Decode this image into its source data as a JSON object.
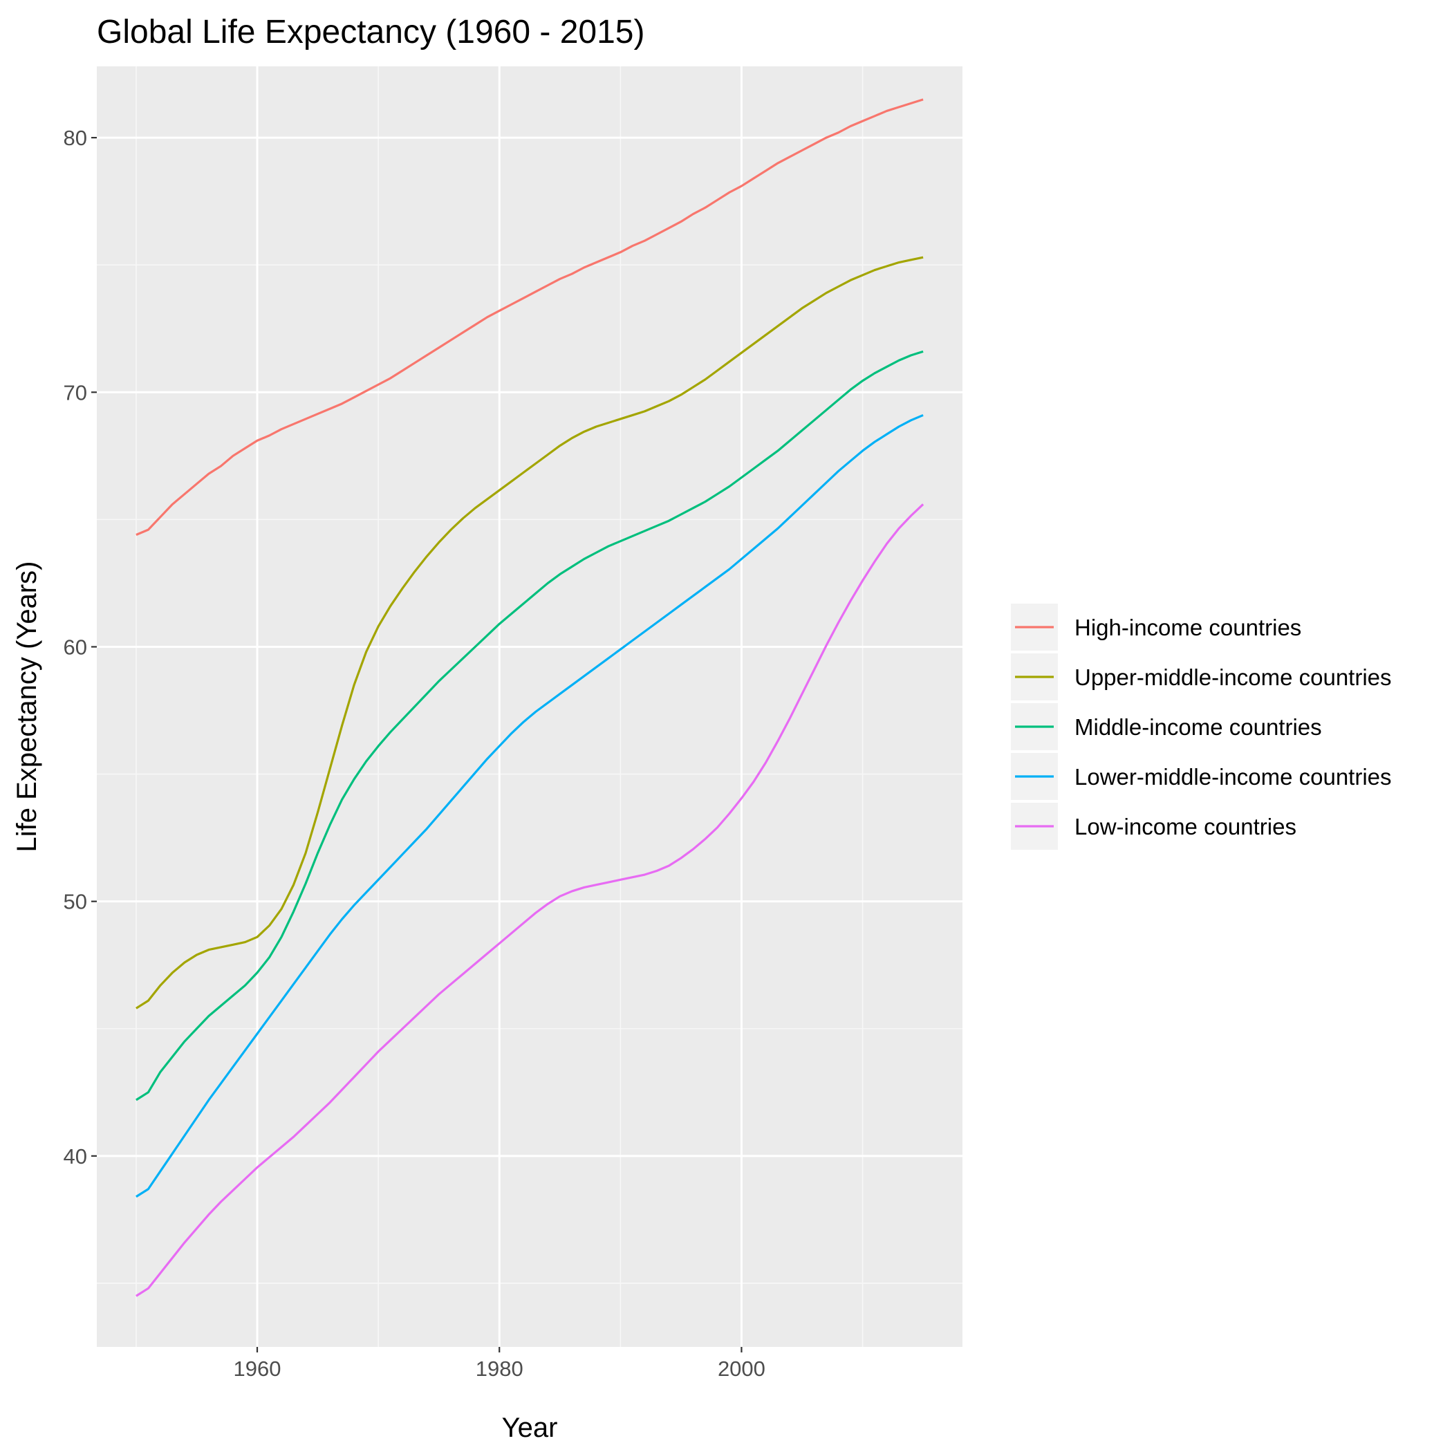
{
  "chart_data": {
    "type": "line",
    "title": "Global Life Expectancy (1960 - 2015)",
    "xlabel": "Year",
    "ylabel": "Life Expectancy (Years)",
    "xlim": [
      1946.75,
      2018.25
    ],
    "ylim": [
      32.5,
      82.8
    ],
    "x_ticks": [
      1960,
      1980,
      2000
    ],
    "x_minor_ticks": [
      1950,
      1970,
      1990,
      2010
    ],
    "y_ticks": [
      40,
      50,
      60,
      70,
      80
    ],
    "y_minor_ticks": [
      35,
      45,
      55,
      65,
      75
    ],
    "grid": true,
    "legend_position": "right",
    "x": [
      1950,
      1951,
      1952,
      1953,
      1954,
      1955,
      1956,
      1957,
      1958,
      1959,
      1960,
      1961,
      1962,
      1963,
      1964,
      1965,
      1966,
      1967,
      1968,
      1969,
      1970,
      1971,
      1972,
      1973,
      1974,
      1975,
      1976,
      1977,
      1978,
      1979,
      1980,
      1981,
      1982,
      1983,
      1984,
      1985,
      1986,
      1987,
      1988,
      1989,
      1990,
      1991,
      1992,
      1993,
      1994,
      1995,
      1996,
      1997,
      1998,
      1999,
      2000,
      2001,
      2002,
      2003,
      2004,
      2005,
      2006,
      2007,
      2008,
      2009,
      2010,
      2011,
      2012,
      2013,
      2014,
      2015
    ],
    "series": [
      {
        "name": "High-income countries",
        "color": "#F8766D",
        "values": [
          64.4,
          64.6,
          65.1,
          65.6,
          66.0,
          66.4,
          66.8,
          67.1,
          67.5,
          67.8,
          68.1,
          68.3,
          68.55,
          68.75,
          68.95,
          69.15,
          69.35,
          69.55,
          69.8,
          70.05,
          70.3,
          70.55,
          70.85,
          71.15,
          71.45,
          71.75,
          72.05,
          72.35,
          72.65,
          72.95,
          73.2,
          73.45,
          73.7,
          73.95,
          74.2,
          74.45,
          74.65,
          74.9,
          75.1,
          75.3,
          75.5,
          75.75,
          75.95,
          76.2,
          76.45,
          76.7,
          77.0,
          77.25,
          77.55,
          77.85,
          78.1,
          78.4,
          78.7,
          79.0,
          79.25,
          79.5,
          79.75,
          80.0,
          80.2,
          80.45,
          80.65,
          80.85,
          81.05,
          81.2,
          81.35,
          81.5
        ]
      },
      {
        "name": "Upper-middle-income countries",
        "color": "#A3A500",
        "values": [
          45.8,
          46.1,
          46.7,
          47.2,
          47.6,
          47.9,
          48.1,
          48.2,
          48.3,
          48.4,
          48.6,
          49.05,
          49.7,
          50.65,
          51.9,
          53.5,
          55.2,
          56.9,
          58.5,
          59.8,
          60.8,
          61.6,
          62.3,
          62.95,
          63.55,
          64.1,
          64.6,
          65.05,
          65.45,
          65.8,
          66.15,
          66.5,
          66.85,
          67.2,
          67.55,
          67.9,
          68.2,
          68.45,
          68.65,
          68.8,
          68.95,
          69.1,
          69.25,
          69.45,
          69.65,
          69.9,
          70.2,
          70.5,
          70.85,
          71.2,
          71.55,
          71.9,
          72.25,
          72.6,
          72.95,
          73.3,
          73.6,
          73.9,
          74.15,
          74.4,
          74.6,
          74.8,
          74.95,
          75.1,
          75.2,
          75.3
        ]
      },
      {
        "name": "Middle-income countries",
        "color": "#00BF7D",
        "values": [
          42.2,
          42.5,
          43.3,
          43.9,
          44.5,
          45.0,
          45.5,
          45.9,
          46.3,
          46.7,
          47.2,
          47.8,
          48.6,
          49.6,
          50.7,
          51.9,
          53.0,
          54.0,
          54.8,
          55.5,
          56.1,
          56.65,
          57.15,
          57.65,
          58.15,
          58.65,
          59.1,
          59.55,
          60.0,
          60.45,
          60.9,
          61.3,
          61.7,
          62.1,
          62.5,
          62.85,
          63.15,
          63.45,
          63.7,
          63.95,
          64.15,
          64.35,
          64.55,
          64.75,
          64.95,
          65.2,
          65.45,
          65.7,
          66.0,
          66.3,
          66.65,
          67.0,
          67.35,
          67.7,
          68.1,
          68.5,
          68.9,
          69.3,
          69.7,
          70.1,
          70.45,
          70.75,
          71.0,
          71.25,
          71.45,
          71.6
        ]
      },
      {
        "name": "Lower-middle-income countries",
        "color": "#00B0F6",
        "values": [
          38.4,
          38.7,
          39.4,
          40.1,
          40.8,
          41.5,
          42.2,
          42.85,
          43.5,
          44.15,
          44.8,
          45.45,
          46.1,
          46.75,
          47.4,
          48.05,
          48.7,
          49.3,
          49.85,
          50.35,
          50.85,
          51.35,
          51.85,
          52.35,
          52.85,
          53.4,
          53.95,
          54.5,
          55.05,
          55.6,
          56.1,
          56.6,
          57.05,
          57.45,
          57.8,
          58.15,
          58.5,
          58.85,
          59.2,
          59.55,
          59.9,
          60.25,
          60.6,
          60.95,
          61.3,
          61.65,
          62.0,
          62.35,
          62.7,
          63.05,
          63.45,
          63.85,
          64.25,
          64.65,
          65.1,
          65.55,
          66.0,
          66.45,
          66.9,
          67.3,
          67.7,
          68.05,
          68.35,
          68.65,
          68.9,
          69.1
        ]
      },
      {
        "name": "Low-income countries",
        "color": "#E76BF3",
        "values": [
          34.5,
          34.8,
          35.4,
          36.0,
          36.6,
          37.15,
          37.7,
          38.2,
          38.65,
          39.1,
          39.55,
          39.95,
          40.35,
          40.75,
          41.2,
          41.65,
          42.1,
          42.6,
          43.1,
          43.6,
          44.1,
          44.55,
          45.0,
          45.45,
          45.9,
          46.35,
          46.75,
          47.15,
          47.55,
          47.95,
          48.35,
          48.75,
          49.15,
          49.55,
          49.9,
          50.2,
          50.4,
          50.55,
          50.65,
          50.75,
          50.85,
          50.95,
          51.05,
          51.2,
          51.4,
          51.7,
          52.05,
          52.45,
          52.9,
          53.45,
          54.05,
          54.7,
          55.45,
          56.3,
          57.2,
          58.15,
          59.1,
          60.05,
          60.95,
          61.8,
          62.6,
          63.35,
          64.05,
          64.65,
          65.15,
          65.6
        ]
      }
    ]
  }
}
